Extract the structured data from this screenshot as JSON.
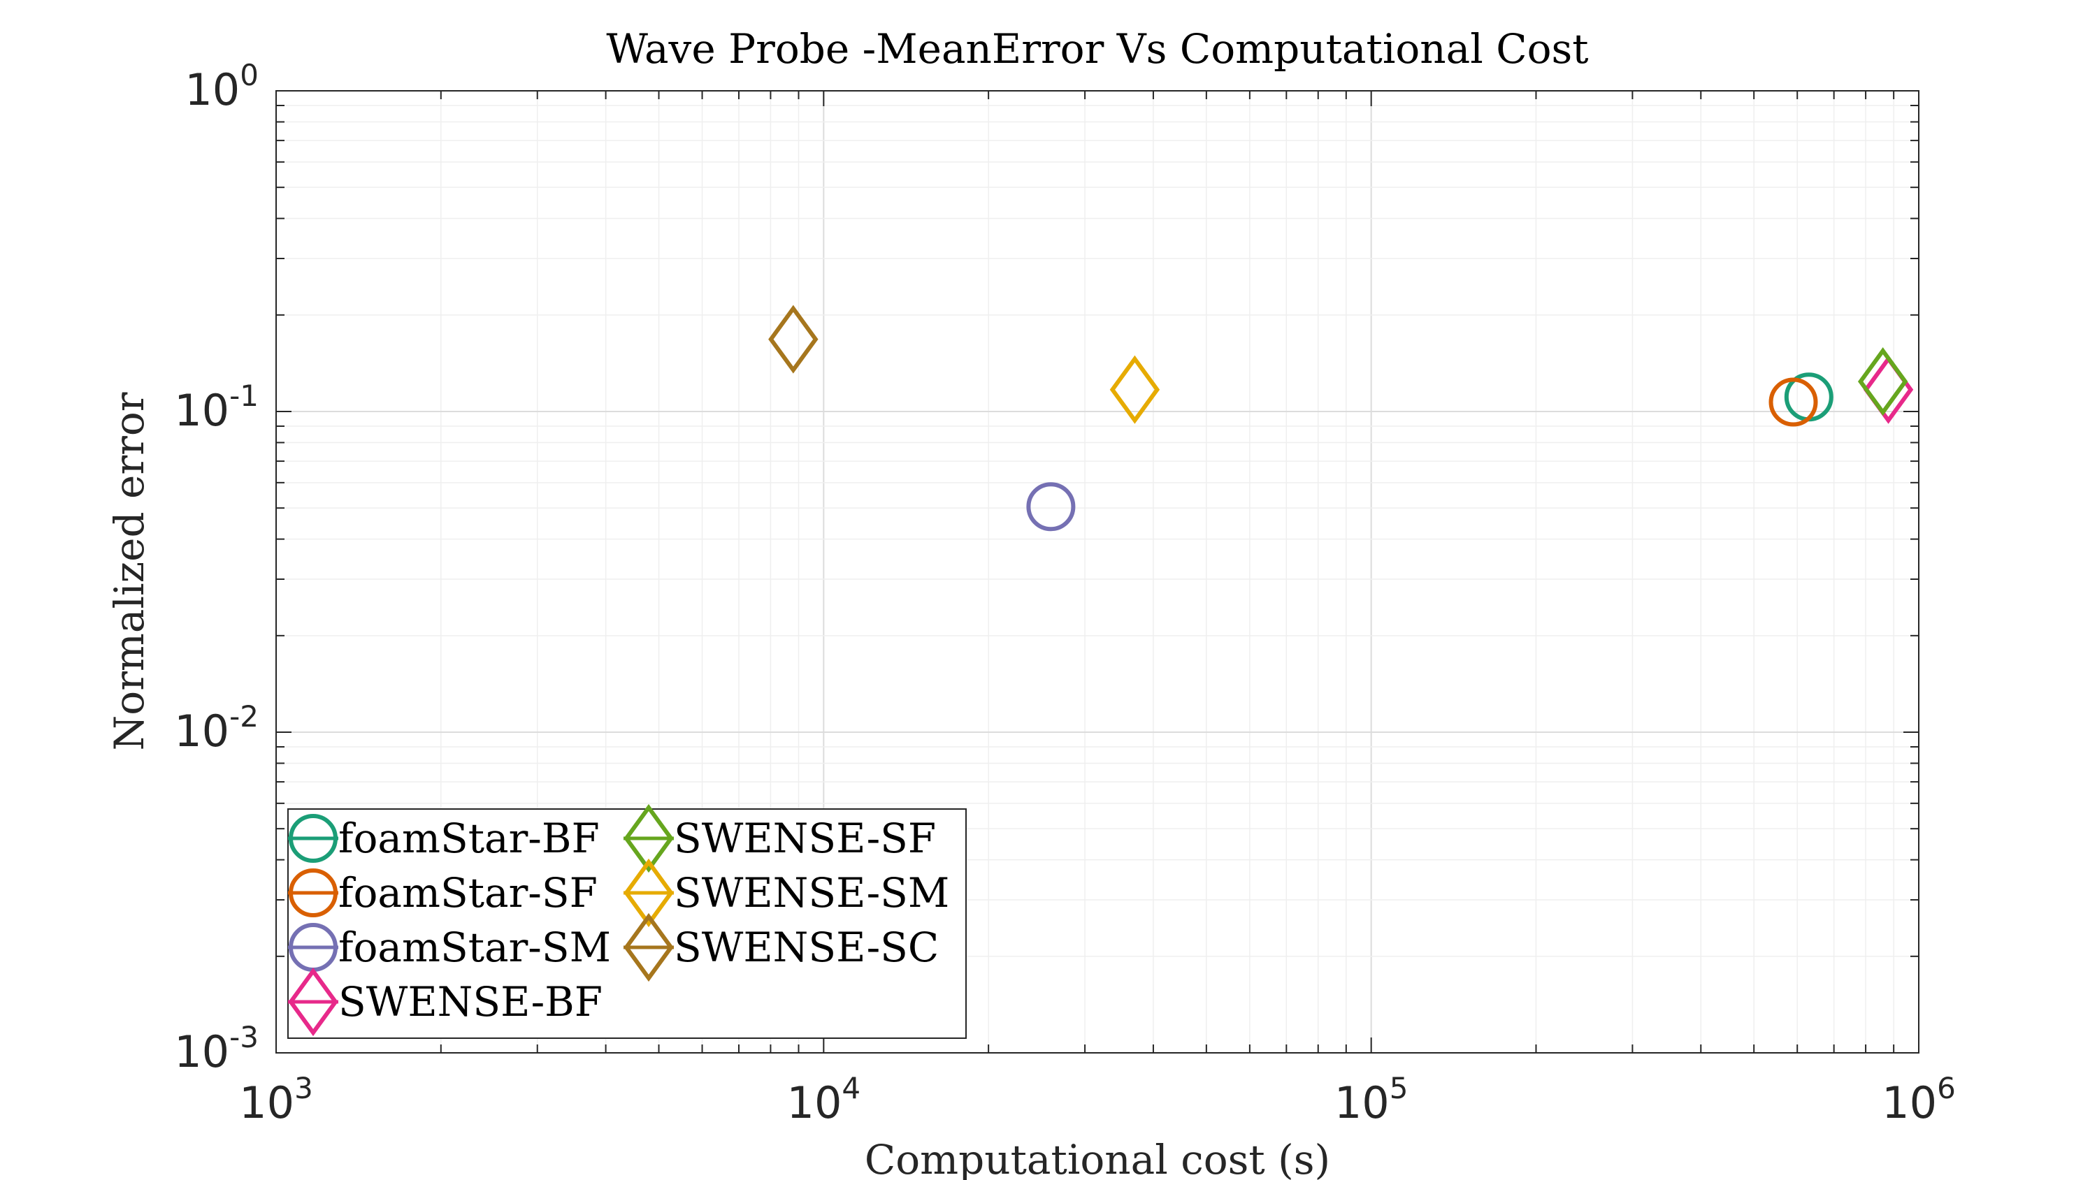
{
  "chart_data": {
    "type": "scatter",
    "title": "Wave Probe -MeanError Vs Computational Cost",
    "xlabel": "Computational cost (s)",
    "ylabel": "Normalized error",
    "xscale": "log",
    "yscale": "log",
    "xlim": [
      1000,
      1000000
    ],
    "ylim": [
      0.001,
      1
    ],
    "x_ticks": [
      {
        "base": "10",
        "exp": "3",
        "value": 1000
      },
      {
        "base": "10",
        "exp": "4",
        "value": 10000
      },
      {
        "base": "10",
        "exp": "5",
        "value": 100000
      },
      {
        "base": "10",
        "exp": "6",
        "value": 1000000
      }
    ],
    "y_ticks": [
      {
        "base": "10",
        "exp": "0",
        "value": 1
      },
      {
        "base": "10",
        "exp": "-1",
        "value": 0.1
      },
      {
        "base": "10",
        "exp": "-2",
        "value": 0.01
      },
      {
        "base": "10",
        "exp": "-3",
        "value": 0.001
      }
    ],
    "grid": true,
    "legend_position": "bottom-left",
    "series": [
      {
        "name": "foamStar-BF",
        "marker": "circle",
        "color": "#1b9e77",
        "x": 630000,
        "y": 0.111
      },
      {
        "name": "foamStar-SF",
        "marker": "circle",
        "color": "#d95f02",
        "x": 590000,
        "y": 0.107
      },
      {
        "name": "foamStar-SM",
        "marker": "circle",
        "color": "#7570b3",
        "x": 26000,
        "y": 0.0505
      },
      {
        "name": "SWENSE-BF",
        "marker": "diamond",
        "color": "#e7298a",
        "x": 880000,
        "y": 0.117
      },
      {
        "name": "SWENSE-SF",
        "marker": "diamond",
        "color": "#66a61e",
        "x": 860000,
        "y": 0.124
      },
      {
        "name": "SWENSE-SM",
        "marker": "diamond",
        "color": "#e6ab02",
        "x": 37000,
        "y": 0.117
      },
      {
        "name": "SWENSE-SC",
        "marker": "diamond",
        "color": "#a6761d",
        "x": 8800,
        "y": 0.168
      }
    ]
  }
}
